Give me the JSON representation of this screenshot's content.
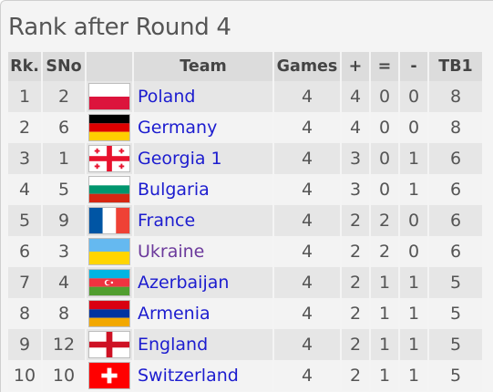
{
  "title": "Rank after Round 4",
  "columns": {
    "rank": "Rk.",
    "sno": "SNo",
    "flag": "",
    "team": "Team",
    "games": "Games",
    "plus": "+",
    "eq": "=",
    "minus": "-",
    "tb1": "TB1"
  },
  "rows": [
    {
      "rank": "1",
      "sno": "2",
      "flag": "poland-flag-icon",
      "team": "Poland",
      "games": "4",
      "plus": "4",
      "eq": "0",
      "minus": "0",
      "tb1": "8"
    },
    {
      "rank": "2",
      "sno": "6",
      "flag": "germany-flag-icon",
      "team": "Germany",
      "games": "4",
      "plus": "4",
      "eq": "0",
      "minus": "0",
      "tb1": "8"
    },
    {
      "rank": "3",
      "sno": "1",
      "flag": "georgia-flag-icon",
      "team": "Georgia 1",
      "games": "4",
      "plus": "3",
      "eq": "0",
      "minus": "1",
      "tb1": "6"
    },
    {
      "rank": "4",
      "sno": "5",
      "flag": "bulgaria-flag-icon",
      "team": "Bulgaria",
      "games": "4",
      "plus": "3",
      "eq": "0",
      "minus": "1",
      "tb1": "6"
    },
    {
      "rank": "5",
      "sno": "9",
      "flag": "france-flag-icon",
      "team": "France",
      "games": "4",
      "plus": "2",
      "eq": "2",
      "minus": "0",
      "tb1": "6"
    },
    {
      "rank": "6",
      "sno": "3",
      "flag": "ukraine-flag-icon",
      "team": "Ukraine",
      "games": "4",
      "plus": "2",
      "eq": "2",
      "minus": "0",
      "tb1": "6"
    },
    {
      "rank": "7",
      "sno": "4",
      "flag": "azerbaijan-flag-icon",
      "team": "Azerbaijan",
      "games": "4",
      "plus": "2",
      "eq": "1",
      "minus": "1",
      "tb1": "5"
    },
    {
      "rank": "8",
      "sno": "8",
      "flag": "armenia-flag-icon",
      "team": "Armenia",
      "games": "4",
      "plus": "2",
      "eq": "1",
      "minus": "1",
      "tb1": "5"
    },
    {
      "rank": "9",
      "sno": "12",
      "flag": "england-flag-icon",
      "team": "England",
      "games": "4",
      "plus": "2",
      "eq": "1",
      "minus": "1",
      "tb1": "5"
    },
    {
      "rank": "10",
      "sno": "10",
      "flag": "switzerland-flag-icon",
      "team": "Switzerland",
      "games": "4",
      "plus": "2",
      "eq": "1",
      "minus": "1",
      "tb1": "5"
    }
  ],
  "colors": {
    "link": "#1c1ccf",
    "visited_link": "#6c3a9c",
    "header_bg": "#dcdcdc",
    "row_odd_bg": "#e6e6e6",
    "row_even_bg": "#f3f3f3"
  }
}
